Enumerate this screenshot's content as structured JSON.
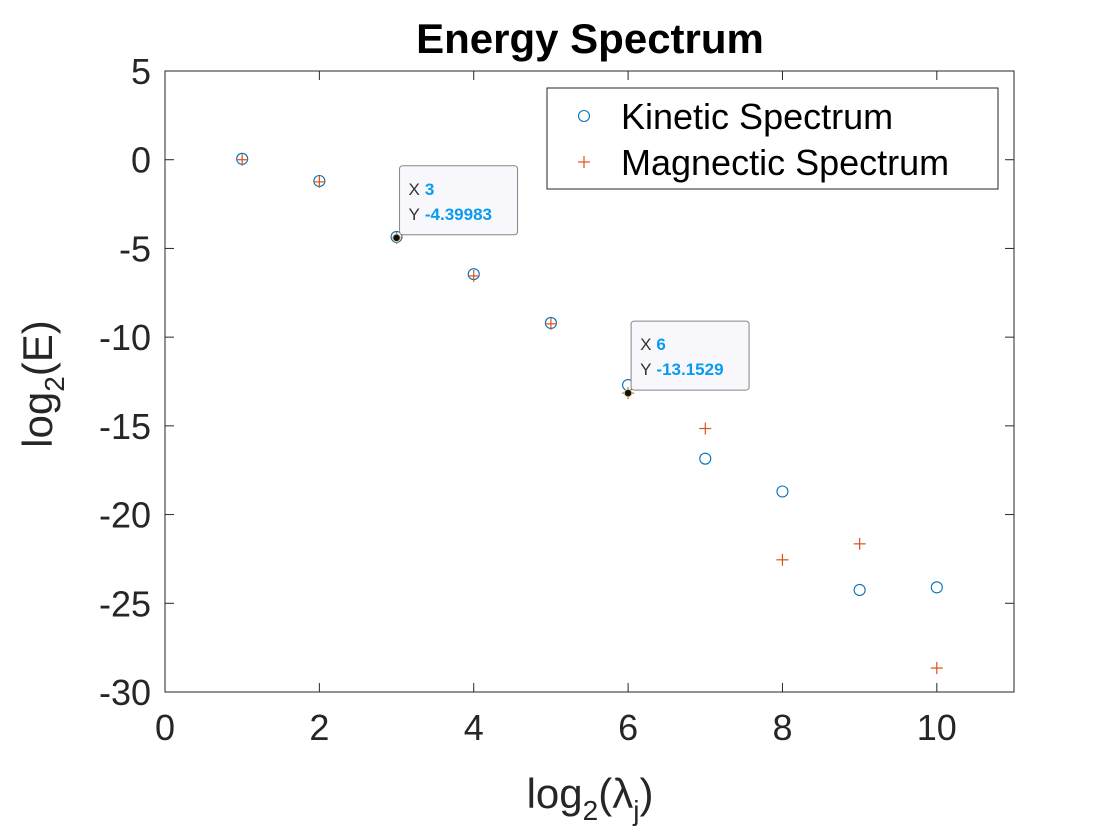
{
  "chart_data": {
    "type": "scatter",
    "title": "Energy Spectrum",
    "xlabel": {
      "base": "log",
      "sub": "2",
      "open": "(",
      "symbol": "λ",
      "symbol_sub": "j",
      "close": ")"
    },
    "ylabel": {
      "base": "log",
      "sub": "2",
      "rest": "(E)"
    },
    "xlim": [
      0,
      11
    ],
    "ylim": [
      -30,
      5
    ],
    "xticks": [
      0,
      2,
      4,
      6,
      8,
      10
    ],
    "yticks": [
      5,
      0,
      -5,
      -10,
      -15,
      -20,
      -25,
      -30
    ],
    "x": [
      1,
      2,
      3,
      4,
      5,
      6,
      7,
      8,
      9,
      10
    ],
    "series": [
      {
        "name": "Kinetic Spectrum",
        "marker": "circle",
        "color": "#0072BD",
        "values": [
          0.05,
          -1.2,
          -4.35,
          -6.45,
          -9.2,
          -12.7,
          -16.85,
          -18.7,
          -24.25,
          -24.1
        ]
      },
      {
        "name": "Magnectic Spectrum",
        "marker": "plus",
        "color": "#D95319",
        "values": [
          0.0,
          -1.25,
          -4.39983,
          -6.55,
          -9.25,
          -13.1529,
          -15.15,
          -22.55,
          -21.65,
          -28.65
        ]
      }
    ],
    "legend_position": "top-right",
    "grid": false,
    "datatips": [
      {
        "x_key": "X",
        "y_key": "Y",
        "x": "3",
        "y": "-4.39983",
        "x_value": 3,
        "y_value": -4.39983
      },
      {
        "x_key": "X",
        "y_key": "Y",
        "x": "6",
        "y": "-13.1529",
        "x_value": 6,
        "y_value": -13.1529
      }
    ]
  }
}
